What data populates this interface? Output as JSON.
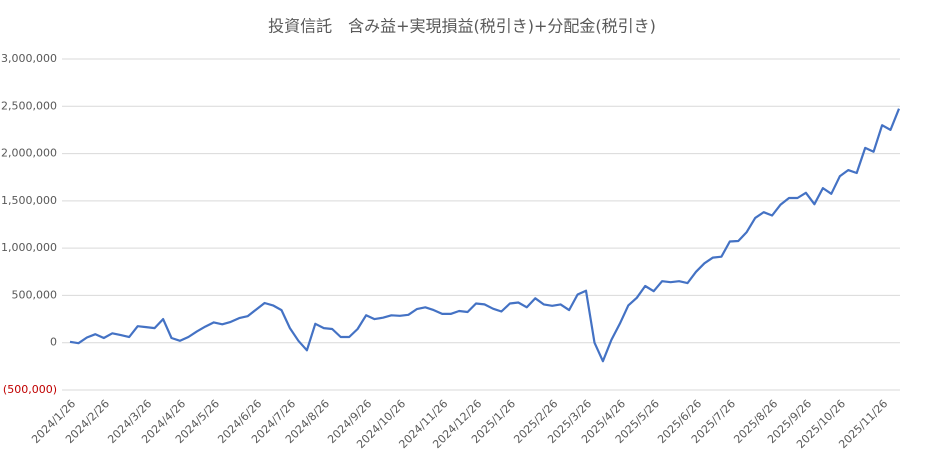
{
  "chart_data": {
    "type": "line",
    "title": "投資信託　含み益+実現損益(税引き)+分配金(税引き)",
    "categories": [
      "2024/1/26",
      null,
      null,
      null,
      "2024/2/26",
      null,
      null,
      null,
      null,
      "2024/3/26",
      null,
      null,
      null,
      "2024/4/26",
      null,
      null,
      null,
      "2024/5/26",
      null,
      null,
      null,
      null,
      "2024/6/26",
      null,
      null,
      null,
      "2024/7/26",
      null,
      null,
      null,
      "2024/8/26",
      null,
      null,
      null,
      null,
      "2024/9/26",
      null,
      null,
      null,
      "2024/10/26",
      null,
      null,
      null,
      null,
      "2024/11/26",
      null,
      null,
      null,
      "2024/12/26",
      null,
      null,
      null,
      "2025/1/26",
      null,
      null,
      null,
      null,
      "2025/2/26",
      null,
      null,
      null,
      "2025/3/26",
      null,
      null,
      null,
      "2025/4/26",
      null,
      null,
      null,
      "2025/5/26",
      null,
      null,
      null,
      null,
      "2025/6/26",
      null,
      null,
      null,
      "2025/7/26",
      null,
      null,
      null,
      null,
      "2025/8/26",
      null,
      null,
      null,
      "2025/9/26",
      null,
      null,
      null,
      "2025/10/26",
      null,
      null,
      null,
      null,
      "2025/11/26",
      null,
      null
    ],
    "values": [
      10000,
      -5000,
      55000,
      90000,
      50000,
      100000,
      80000,
      60000,
      175000,
      165000,
      155000,
      250000,
      50000,
      20000,
      60000,
      120000,
      170000,
      215000,
      195000,
      220000,
      260000,
      280000,
      350000,
      420000,
      395000,
      345000,
      155000,
      20000,
      -80000,
      200000,
      155000,
      145000,
      60000,
      60000,
      145000,
      290000,
      250000,
      265000,
      290000,
      285000,
      295000,
      355000,
      375000,
      345000,
      305000,
      305000,
      335000,
      325000,
      415000,
      405000,
      360000,
      330000,
      415000,
      425000,
      375000,
      470000,
      405000,
      390000,
      405000,
      345000,
      510000,
      550000,
      0,
      -195000,
      30000,
      200000,
      395000,
      475000,
      600000,
      545000,
      650000,
      640000,
      650000,
      630000,
      750000,
      840000,
      900000,
      910000,
      1070000,
      1075000,
      1170000,
      1320000,
      1380000,
      1345000,
      1460000,
      1530000,
      1530000,
      1585000,
      1465000,
      1635000,
      1575000,
      1760000,
      1825000,
      1795000,
      2060000,
      2020000,
      2300000,
      2250000,
      2475000
    ],
    "color": "#4472c4",
    "ylim": [
      -500000,
      3000000
    ],
    "yticks": [
      {
        "value": -500000,
        "label": "(500,000)"
      },
      0,
      {
        "value": 500000,
        "label": "500,000"
      },
      {
        "value": 1000000,
        "label": "1,000,000"
      },
      {
        "value": 1500000,
        "label": "1,500,000"
      },
      {
        "value": 2000000,
        "label": "2,000,000"
      },
      {
        "value": 2500000,
        "label": "2,500,000"
      },
      {
        "value": 3000000,
        "label": "3,000,000"
      }
    ],
    "negative_tick_color": "#c00000",
    "grid": true
  }
}
